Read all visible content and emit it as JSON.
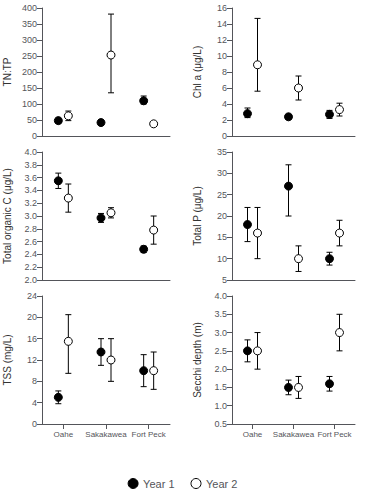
{
  "chart_data": [
    {
      "type": "scatter",
      "ylabel": "TN:TP",
      "categories": [
        "Oahe",
        "Sakakawea",
        "Fort Peck"
      ],
      "ylim": [
        0,
        400
      ],
      "yticks": [
        0,
        50,
        100,
        150,
        200,
        250,
        300,
        350,
        400
      ],
      "grid": false,
      "legend": "bottom",
      "tick_labels": "y",
      "series": [
        {
          "name": "Year 1",
          "color": "#000000",
          "marker": "circle",
          "values": [
            48,
            42,
            110
          ],
          "err_low": [
            8,
            5,
            10
          ],
          "err_high": [
            8,
            5,
            15
          ]
        },
        {
          "name": "Year 2",
          "color": "#000000",
          "marker": "open-circle",
          "values": [
            63,
            253,
            38
          ],
          "err_low": [
            15,
            118,
            5
          ],
          "err_high": [
            15,
            128,
            5
          ]
        }
      ]
    },
    {
      "type": "scatter",
      "ylabel": "Chl a (μg/L)",
      "categories": [
        "Oahe",
        "Sakakawea",
        "Fort Peck"
      ],
      "ylim": [
        0,
        16
      ],
      "yticks": [
        0,
        2,
        4,
        6,
        8,
        10,
        12,
        14,
        16
      ],
      "grid": false,
      "legend": "bottom",
      "tick_labels": "y",
      "series": [
        {
          "name": "Year 1",
          "color": "#000000",
          "marker": "circle",
          "values": [
            2.8,
            2.4,
            2.7
          ],
          "err_low": [
            0.5,
            0.3,
            0.5
          ],
          "err_high": [
            0.7,
            0.3,
            0.5
          ]
        },
        {
          "name": "Year 2",
          "color": "#000000",
          "marker": "open-circle",
          "values": [
            8.9,
            6.0,
            3.3
          ],
          "err_low": [
            3.3,
            1.5,
            0.8
          ],
          "err_high": [
            5.8,
            1.5,
            0.8
          ]
        }
      ]
    },
    {
      "type": "scatter",
      "ylabel": "Total organic C (μg/L)",
      "categories": [
        "Oahe",
        "Sakakawea",
        "Fort Peck"
      ],
      "ylim": [
        2.0,
        4.0
      ],
      "yticks": [
        {
          "value": 2.0,
          "label": "2.0"
        },
        2.2,
        2.4,
        2.6,
        2.8,
        {
          "value": 3.0,
          "label": "3.0"
        },
        3.2,
        3.4,
        3.6,
        3.8,
        {
          "value": 4.0,
          "label": "4.0"
        }
      ],
      "grid": false,
      "legend": "bottom",
      "tick_labels": "y",
      "series": [
        {
          "name": "Year 1",
          "color": "#000000",
          "marker": "circle",
          "values": [
            3.55,
            2.97,
            2.48
          ],
          "err_low": [
            0.12,
            0.07,
            0.05
          ],
          "err_high": [
            0.12,
            0.07,
            0.05
          ]
        },
        {
          "name": "Year 2",
          "color": "#000000",
          "marker": "open-circle",
          "values": [
            3.28,
            3.05,
            2.78
          ],
          "err_low": [
            0.22,
            0.08,
            0.22
          ],
          "err_high": [
            0.22,
            0.08,
            0.22
          ]
        }
      ]
    },
    {
      "type": "scatter",
      "ylabel": "Total P (μg/L)",
      "categories": [
        "Oahe",
        "Sakakawea",
        "Fort Peck"
      ],
      "ylim": [
        5,
        35
      ],
      "yticks": [
        5,
        10,
        15,
        20,
        25,
        30,
        35
      ],
      "grid": false,
      "legend": "bottom",
      "tick_labels": "y",
      "series": [
        {
          "name": "Year 1",
          "color": "#000000",
          "marker": "circle",
          "values": [
            18,
            27,
            10
          ],
          "err_low": [
            4,
            7,
            1.5
          ],
          "err_high": [
            4,
            5,
            1.5
          ]
        },
        {
          "name": "Year 2",
          "color": "#000000",
          "marker": "open-circle",
          "values": [
            16,
            10,
            16
          ],
          "err_low": [
            6,
            3,
            3
          ],
          "err_high": [
            6,
            3,
            3
          ]
        }
      ]
    },
    {
      "type": "scatter",
      "ylabel": "TSS (mg/L)",
      "categories": [
        "Oahe",
        "Sakakawea",
        "Fort Peck"
      ],
      "ylim": [
        0,
        24
      ],
      "yticks": [
        0,
        4,
        8,
        12,
        16,
        20,
        24
      ],
      "grid": false,
      "legend": "bottom",
      "series": [
        {
          "name": "Year 1",
          "color": "#000000",
          "marker": "circle",
          "values": [
            5.0,
            13.5,
            10
          ],
          "err_low": [
            1.2,
            2.5,
            3
          ],
          "err_high": [
            1.2,
            2.5,
            3
          ]
        },
        {
          "name": "Year 2",
          "color": "#000000",
          "marker": "open-circle",
          "values": [
            15.5,
            12,
            10
          ],
          "err_low": [
            6,
            4,
            3.5
          ],
          "err_high": [
            5,
            4,
            3.5
          ]
        }
      ]
    },
    {
      "type": "scatter",
      "ylabel": "Secchi depth (m)",
      "categories": [
        "Oahe",
        "Sakakawea",
        "Fort Peck"
      ],
      "ylim": [
        0.5,
        4.0
      ],
      "yticks": [
        0.5,
        {
          "value": 1.0,
          "label": "1.0"
        },
        1.5,
        {
          "value": 2.0,
          "label": "2.0"
        },
        2.5,
        {
          "value": 3.0,
          "label": "3.0"
        },
        3.5,
        {
          "value": 4.0,
          "label": "4.0"
        }
      ],
      "grid": false,
      "legend": "bottom",
      "series": [
        {
          "name": "Year 1",
          "color": "#000000",
          "marker": "circle",
          "values": [
            2.5,
            1.5,
            1.6
          ],
          "err_low": [
            0.3,
            0.2,
            0.2
          ],
          "err_high": [
            0.3,
            0.2,
            0.2
          ]
        },
        {
          "name": "Year 2",
          "color": "#000000",
          "marker": "open-circle",
          "values": [
            2.5,
            1.5,
            3.0
          ],
          "err_low": [
            0.5,
            0.3,
            0.5
          ],
          "err_high": [
            0.5,
            0.3,
            0.5
          ]
        }
      ]
    }
  ]
}
